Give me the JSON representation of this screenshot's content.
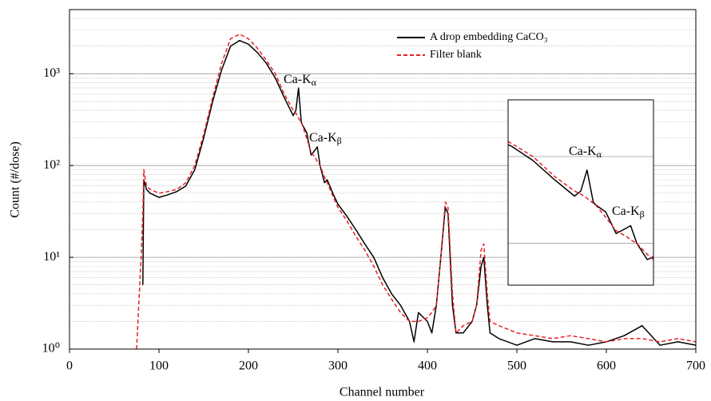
{
  "chart_data": {
    "type": "line",
    "x_label": "Channel number",
    "y_label": "Count (#/dose)",
    "x": [
      75,
      80,
      82,
      83,
      86,
      90,
      100,
      110,
      120,
      130,
      140,
      150,
      160,
      170,
      180,
      190,
      200,
      210,
      220,
      230,
      240,
      250,
      253,
      256,
      259,
      260,
      265,
      270,
      275,
      277,
      280,
      285,
      288,
      295,
      300,
      310,
      320,
      330,
      340,
      350,
      360,
      370,
      380,
      385,
      390,
      400,
      405,
      410,
      415,
      420,
      423,
      428,
      432,
      440,
      450,
      455,
      460,
      463,
      467,
      470,
      480,
      500,
      520,
      540,
      560,
      580,
      600,
      620,
      640,
      660,
      680,
      700
    ],
    "series": [
      {
        "name": "A drop embedding CaCO₃",
        "color": "#000000",
        "dash": "solid",
        "values": [
          null,
          null,
          5,
          70,
          55,
          50,
          45,
          48,
          52,
          60,
          90,
          200,
          500,
          1100,
          2000,
          2300,
          2100,
          1700,
          1300,
          900,
          550,
          350,
          400,
          700,
          300,
          280,
          230,
          130,
          150,
          160,
          100,
          65,
          70,
          48,
          38,
          28,
          20,
          14,
          10,
          6,
          4,
          3,
          2,
          1.2,
          2.5,
          2,
          1.5,
          3,
          10,
          35,
          30,
          3,
          1.5,
          1.5,
          2,
          3,
          8,
          10,
          3,
          1.5,
          1.3,
          1.1,
          1.3,
          1.2,
          1.2,
          1.1,
          1.2,
          1.4,
          1.8,
          1.1,
          1.2,
          1.1
        ]
      },
      {
        "name": "Filter blank",
        "color": "#e8202a",
        "dash": "dashed",
        "values": [
          1,
          10,
          30,
          90,
          60,
          55,
          50,
          52,
          55,
          65,
          100,
          220,
          550,
          1300,
          2400,
          2700,
          2400,
          1900,
          1400,
          1000,
          600,
          400,
          370,
          330,
          290,
          280,
          200,
          140,
          120,
          110,
          100,
          75,
          65,
          45,
          35,
          25,
          17,
          12,
          8,
          5,
          3.5,
          2.5,
          2,
          2,
          2,
          2.2,
          2.5,
          3,
          10,
          40,
          35,
          4,
          1.5,
          1.8,
          2,
          3,
          12,
          14,
          4,
          2,
          1.8,
          1.5,
          1.4,
          1.3,
          1.4,
          1.3,
          1.2,
          1.3,
          1.3,
          1.2,
          1.3,
          1.2
        ]
      }
    ],
    "xlim": [
      0,
      700
    ],
    "xticks": [
      0,
      100,
      200,
      300,
      400,
      500,
      600,
      700
    ],
    "ylim": [
      1,
      5000
    ],
    "y_log": true,
    "yticks": [
      {
        "value": 1,
        "label": "10⁰"
      },
      {
        "value": 10,
        "label": "10¹"
      },
      {
        "value": 100,
        "label": "10²"
      },
      {
        "value": 1000,
        "label": "10³"
      }
    ],
    "yminorticks": [
      2,
      3,
      4,
      5,
      6,
      7,
      8,
      9,
      20,
      30,
      40,
      50,
      60,
      70,
      80,
      90,
      200,
      300,
      400,
      500,
      600,
      700,
      800,
      900,
      2000,
      3000,
      4000
    ],
    "grid": true,
    "legend": "upper right",
    "annotations": [
      {
        "text": "Ca-K",
        "sub": "α"
      },
      {
        "text": "Ca-K",
        "sub": "β"
      }
    ],
    "inset": {
      "xlim": [
        218,
        288
      ],
      "ylim": [
        33,
        4500
      ]
    }
  }
}
